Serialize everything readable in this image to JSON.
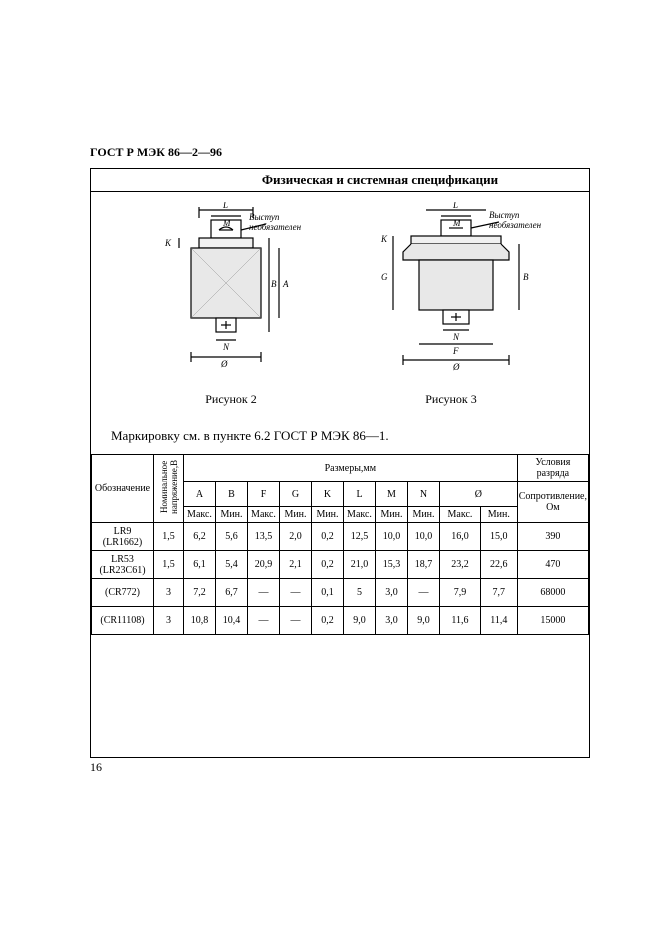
{
  "doc_header": "ГОСТ Р МЭК 86—2—96",
  "spec_title": "Физическая и системная спецификации",
  "fig1_caption": "Рисунок 2",
  "fig2_caption": "Рисунок 3",
  "fig_annot": "Выступ необязателен",
  "marking_note": "Маркировку см. в пункте 6.2 ГОСТ Р МЭК 86—1.",
  "page_num": "16",
  "table": {
    "head": {
      "obzn": "Обозначение",
      "volt": "Номинальное напряжение,В",
      "dimensions": "Размеры,мм",
      "cond": "Условия разряда",
      "resist": "Сопротивление, Ом",
      "cols": [
        "A",
        "B",
        "F",
        "G",
        "K",
        "L",
        "M",
        "N",
        "Ø"
      ],
      "sub": [
        "Макс.",
        "Мин.",
        "Макс.",
        "Мин.",
        "Мин.",
        "Макс.",
        "Мин.",
        "Мин.",
        "Макс.",
        "Мин."
      ]
    },
    "rows": [
      {
        "name": "LR9\n(LR1662)",
        "v": "1,5",
        "d": [
          "6,2",
          "5,6",
          "13,5",
          "2,0",
          "0,2",
          "12,5",
          "10,0",
          "10,0",
          "16,0",
          "15,0"
        ],
        "r": "390"
      },
      {
        "name": "LR53\n(LR23C61)",
        "v": "1,5",
        "d": [
          "6,1",
          "5,4",
          "20,9",
          "2,1",
          "0,2",
          "21,0",
          "15,3",
          "18,7",
          "23,2",
          "22,6"
        ],
        "r": "470"
      },
      {
        "name": "(CR772)",
        "v": "3",
        "d": [
          "7,2",
          "6,7",
          "—",
          "—",
          "0,1",
          "5",
          "3,0",
          "—",
          "7,9",
          "7,7"
        ],
        "r": "68000"
      },
      {
        "name": "(CR11108)",
        "v": "3",
        "d": [
          "10,8",
          "10,4",
          "—",
          "—",
          "0,2",
          "9,0",
          "3,0",
          "9,0",
          "11,6",
          "11,4"
        ],
        "r": "15000"
      }
    ]
  },
  "diagram": {
    "stroke": "#000000",
    "fill_body": "#e8e8e8",
    "hatch": "#333333"
  }
}
